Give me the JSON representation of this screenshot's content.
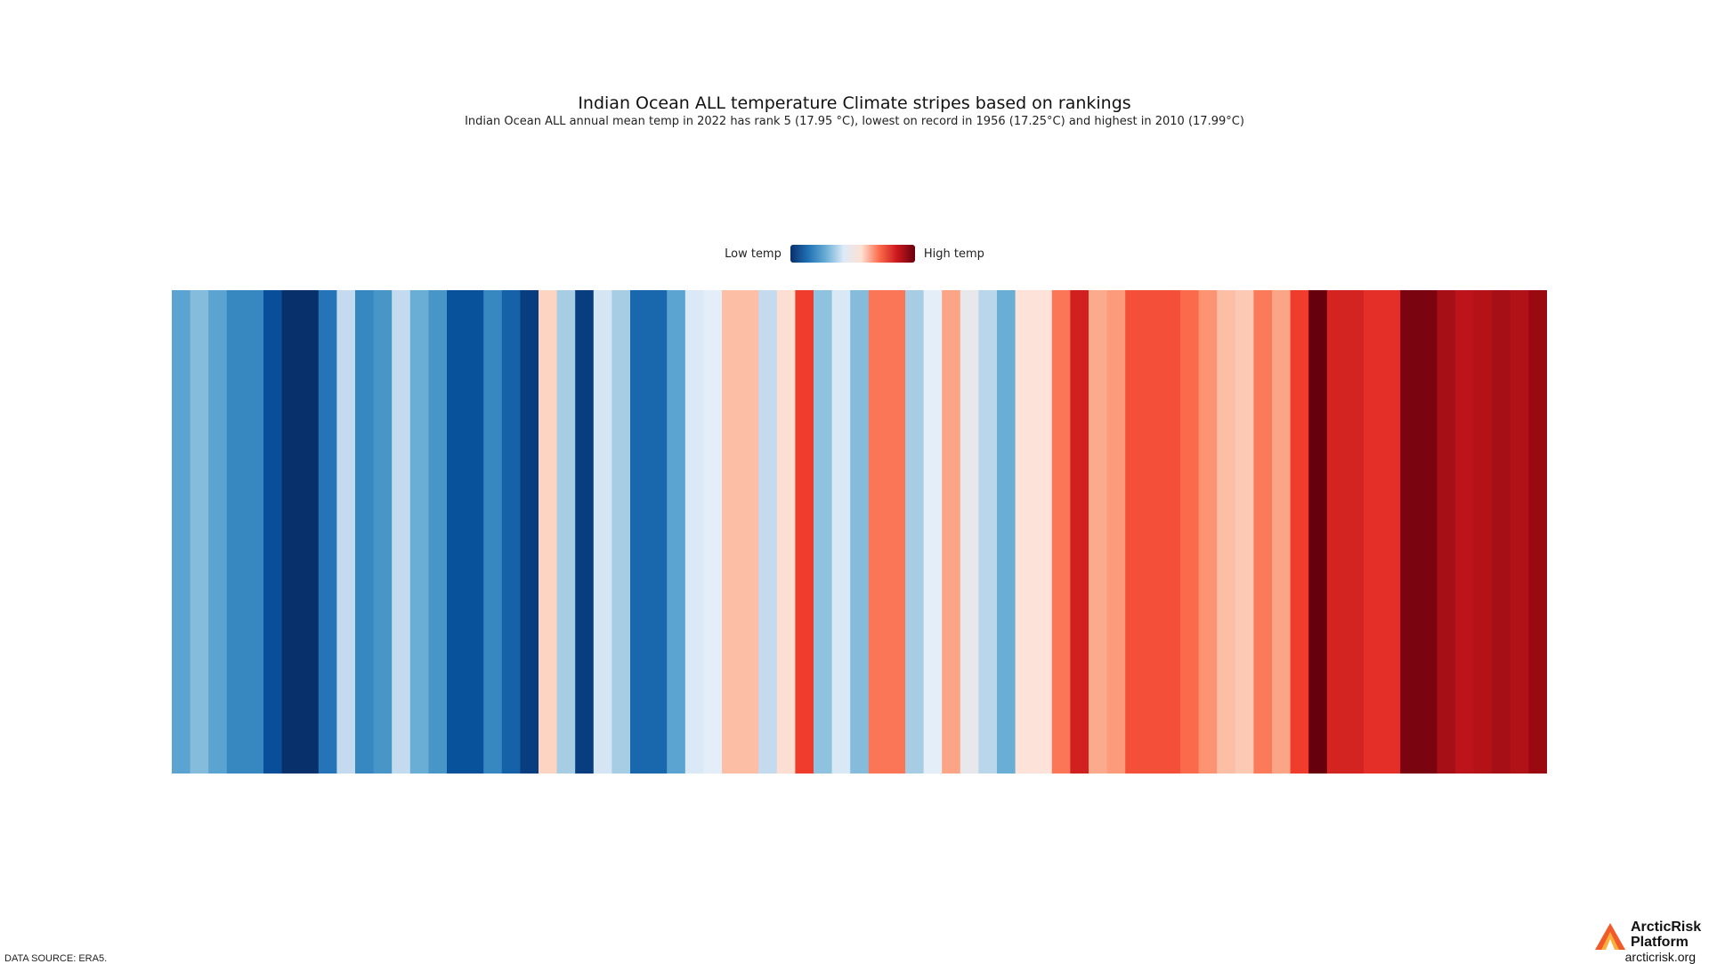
{
  "chart_data": {
    "type": "heatmap",
    "title": "Indian Ocean ALL temperature Climate stripes based on rankings",
    "subtitle": "Indian Ocean ALL annual mean temp in 2022 has rank 5 (17.95 °C), lowest on record in 1956 (17.25°C) and highest in 2010 (17.99°C)",
    "legend": {
      "low_label": "Low temp",
      "high_label": "High temp",
      "placement": "top-center"
    },
    "colors": [
      "#5ba3d0",
      "#85bcdc",
      "#5ba3d0",
      "#3787c0",
      "#3787c0",
      "#084e98",
      "#08306b",
      "#08306b",
      "#2474b7",
      "#c4daee",
      "#3787c0",
      "#4896c8",
      "#c4daee",
      "#6aaed6",
      "#4896c8",
      "#08529c",
      "#08529c",
      "#3787c0",
      "#1562a9",
      "#083d80",
      "#fdd4c2",
      "#a6cde3",
      "#083d80",
      "#d5e5f4",
      "#a6cde3",
      "#1967ad",
      "#1967ad",
      "#5ba3d0",
      "#dbe9f6",
      "#e4eef8",
      "#fcbea5",
      "#fcbea5",
      "#c4daee",
      "#fcded2",
      "#ef3c2d",
      "#8fc2de",
      "#d9e8f5",
      "#85bcdc",
      "#fb7656",
      "#fb7656",
      "#a6cde3",
      "#e4eef8",
      "#fca486",
      "#e8e8ec",
      "#b9d6ea",
      "#6aaed6",
      "#fce2d8",
      "#fce2d8",
      "#fb7656",
      "#d02120",
      "#fcaa8e",
      "#fc9b7c",
      "#f44f39",
      "#f44f39",
      "#f44f39",
      "#fb6a4a",
      "#fc9474",
      "#fcbea5",
      "#fcc9b4",
      "#fb7a5a",
      "#fca486",
      "#ef3c2d",
      "#67000d",
      "#d42422",
      "#d42422",
      "#e32f27",
      "#e32f27",
      "#7a0510",
      "#7a0510",
      "#a50f15",
      "#bc141a",
      "#b51218",
      "#a50f15",
      "#b11218",
      "#99090f"
    ]
  },
  "footer": {
    "source": "DATA SOURCE: ERA5.",
    "logo_text": "ArcticRisk Platform",
    "url": "arcticrisk.org"
  }
}
